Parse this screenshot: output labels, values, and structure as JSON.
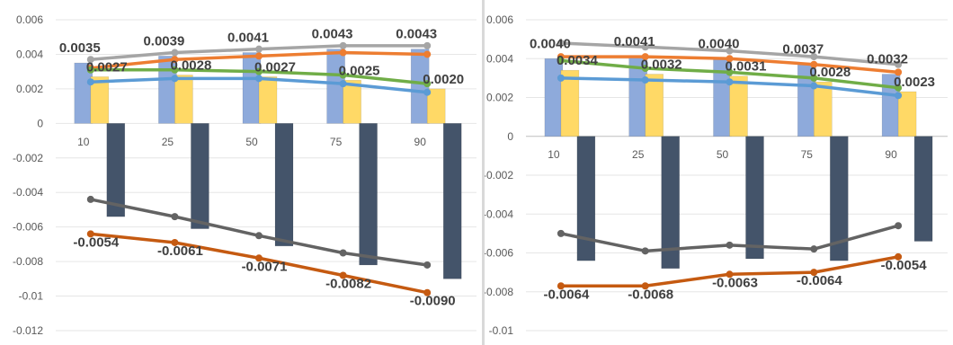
{
  "chart_data": [
    {
      "type": "bar",
      "categories": [
        "10",
        "25",
        "50",
        "75",
        "90"
      ],
      "ylim": [
        -0.012,
        0.006
      ],
      "yticks": [
        "0.006",
        "0.004",
        "0.002",
        "0",
        "-0.002",
        "-0.004",
        "-0.006",
        "-0.008",
        "-0.01",
        "-0.012"
      ],
      "grid": true,
      "legend": "none",
      "bar_series": [
        {
          "color": "#8eaadb",
          "values": [
            0.0035,
            0.0039,
            0.0041,
            0.0043,
            0.0043
          ]
        },
        {
          "color": "#ffd966",
          "values": [
            0.0027,
            0.0028,
            0.0027,
            0.0025,
            0.002
          ]
        },
        {
          "color": "#44546a",
          "values": [
            -0.0054,
            -0.0061,
            -0.0071,
            -0.0082,
            -0.009
          ]
        }
      ],
      "line_series": [
        {
          "color": "#a5a5a5",
          "values": [
            0.0037,
            0.0041,
            0.0043,
            0.0045,
            0.0045
          ]
        },
        {
          "color": "#ed7d31",
          "values": [
            0.0032,
            0.0037,
            0.0039,
            0.0041,
            0.004
          ]
        },
        {
          "color": "#70ad47",
          "values": [
            0.0031,
            0.0031,
            0.003,
            0.0028,
            0.0023
          ]
        },
        {
          "color": "#5b9bd5",
          "values": [
            0.0024,
            0.0026,
            0.0026,
            0.0023,
            0.0018
          ]
        },
        {
          "color": "#636363",
          "values": [
            -0.0044,
            -0.0054,
            -0.0065,
            -0.0075,
            -0.0082
          ]
        },
        {
          "color": "#c55a11",
          "values": [
            -0.0064,
            -0.0069,
            -0.0078,
            -0.0088,
            -0.0098
          ]
        }
      ],
      "data_labels": [
        {
          "series": 0,
          "text": [
            "0.0035",
            "0.0039",
            "0.0041",
            "0.0043",
            "0.0043"
          ]
        },
        {
          "series": 1,
          "text": [
            "0.0027",
            "0.0028",
            "0.0027",
            "0.0025",
            "0.0020"
          ]
        },
        {
          "series": 2,
          "text": [
            "-0.0054",
            "-0.0061",
            "-0.0071",
            "-0.0082",
            "-0.0090"
          ]
        }
      ]
    },
    {
      "type": "bar",
      "categories": [
        "10",
        "25",
        "50",
        "75",
        "90"
      ],
      "ylim": [
        -0.01,
        0.006
      ],
      "yticks": [
        "0.006",
        "0.004",
        "0.002",
        "0",
        "-0.002",
        "-0.004",
        "-0.006",
        "-0.008",
        "-0.01"
      ],
      "grid": true,
      "legend": "none",
      "bar_series": [
        {
          "color": "#8eaadb",
          "values": [
            0.004,
            0.0041,
            0.004,
            0.0037,
            0.0032
          ]
        },
        {
          "color": "#ffd966",
          "values": [
            0.0034,
            0.0032,
            0.0031,
            0.0028,
            0.0023
          ]
        },
        {
          "color": "#44546a",
          "values": [
            -0.0064,
            -0.0068,
            -0.0063,
            -0.0064,
            -0.0054
          ]
        }
      ],
      "line_series": [
        {
          "color": "#a5a5a5",
          "values": [
            0.0048,
            0.0046,
            0.0044,
            0.0041,
            0.0037
          ]
        },
        {
          "color": "#ed7d31",
          "values": [
            0.0041,
            0.0041,
            0.004,
            0.0037,
            0.0033
          ]
        },
        {
          "color": "#70ad47",
          "values": [
            0.0039,
            0.0035,
            0.0033,
            0.003,
            0.0025
          ]
        },
        {
          "color": "#5b9bd5",
          "values": [
            0.003,
            0.0029,
            0.0028,
            0.0026,
            0.0021
          ]
        },
        {
          "color": "#636363",
          "values": [
            -0.005,
            -0.0059,
            -0.0056,
            -0.0058,
            -0.0046
          ]
        },
        {
          "color": "#c55a11",
          "values": [
            -0.0077,
            -0.0077,
            -0.0071,
            -0.007,
            -0.0062
          ]
        }
      ],
      "data_labels": [
        {
          "series": 0,
          "text": [
            "0.0040",
            "0.0041",
            "0.0040",
            "0.0037",
            "0.0032"
          ]
        },
        {
          "series": 1,
          "text": [
            "0.0034",
            "0.0032",
            "0.0031",
            "0.0028",
            "0.0023"
          ]
        },
        {
          "series": 2,
          "text": [
            "-0.0064",
            "-0.0068",
            "-0.0063",
            "-0.0064",
            "-0.0054"
          ]
        }
      ]
    }
  ]
}
